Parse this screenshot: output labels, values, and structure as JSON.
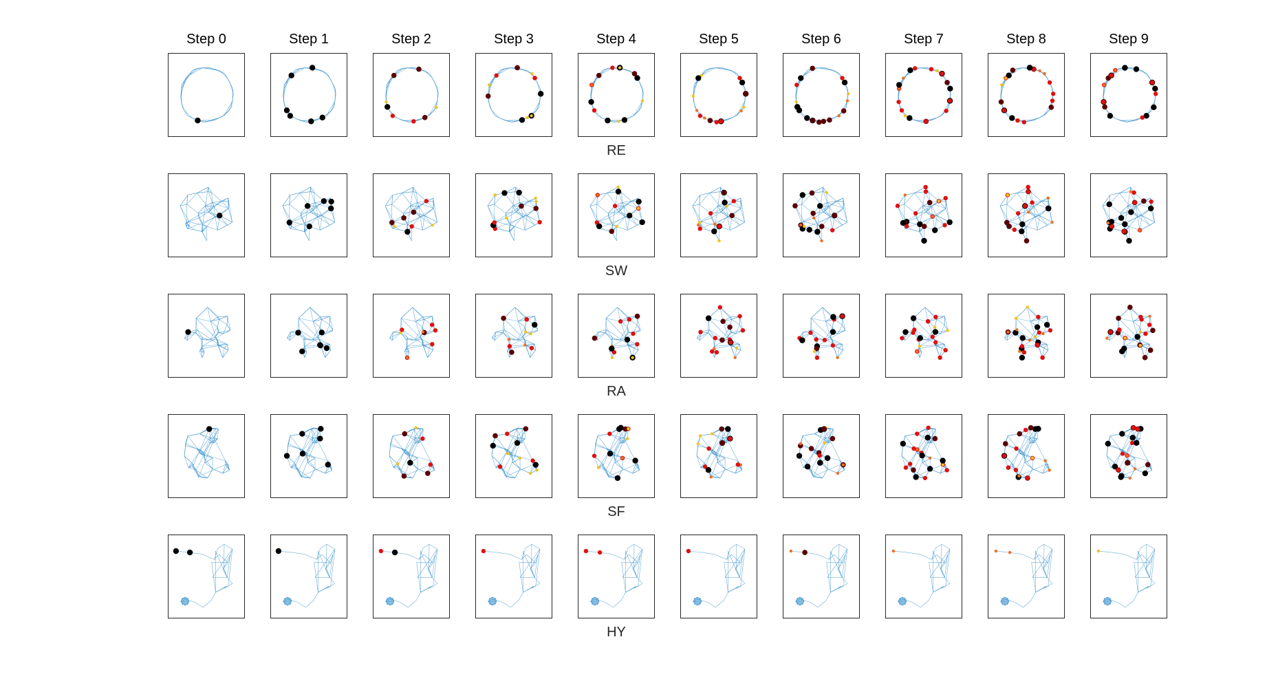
{
  "figure": {
    "steps": [
      "Step 0",
      "Step 1",
      "Step 2",
      "Step 3",
      "Step 4",
      "Step 5",
      "Step 6",
      "Step 7",
      "Step 8",
      "Step 9"
    ],
    "rows": [
      {
        "label": "RE",
        "layout": "ring"
      },
      {
        "label": "SW",
        "layout": "blob"
      },
      {
        "label": "RA",
        "layout": "cluster"
      },
      {
        "label": "SF",
        "layout": "star"
      },
      {
        "label": "HY",
        "layout": "hook"
      }
    ]
  },
  "colors": {
    "edge": "#4a9bd0",
    "node_black": "#000000",
    "node_dark": "#5a0000",
    "node_red": "#e01010",
    "node_orange": "#f07020",
    "node_yellow": "#f2c21a",
    "panel_border": "#262626"
  }
}
